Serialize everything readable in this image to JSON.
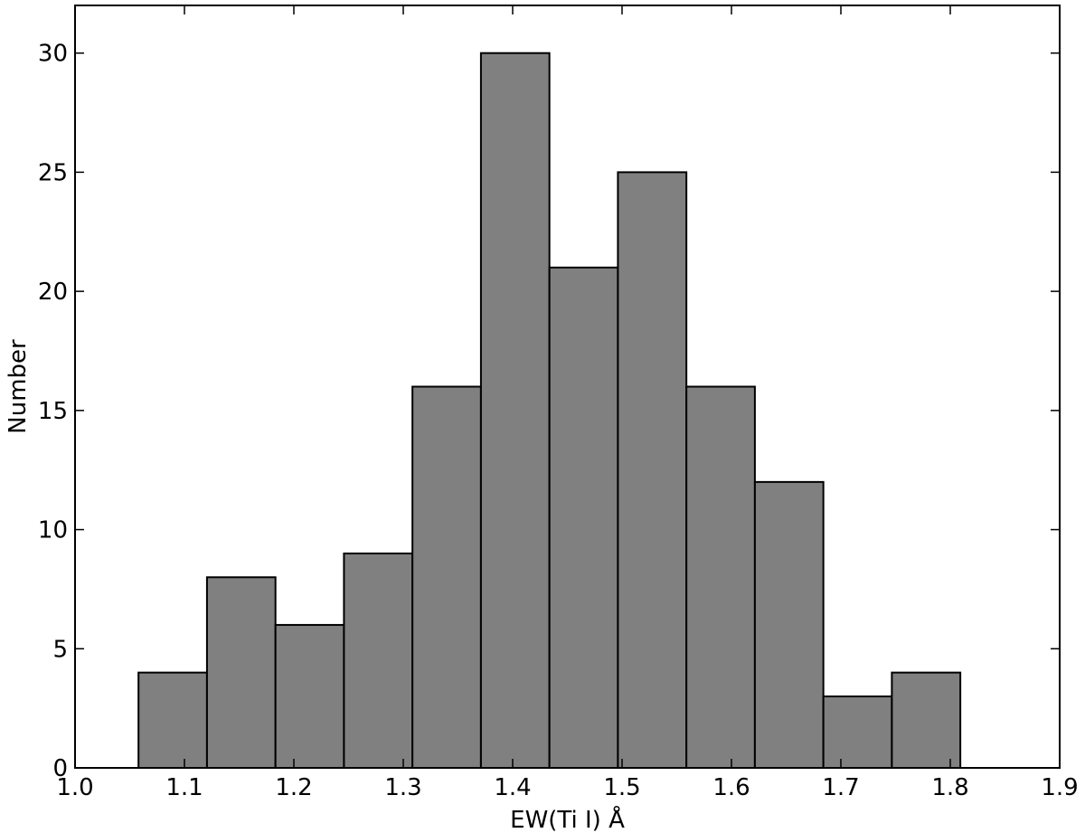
{
  "chart_data": {
    "type": "bar",
    "xlabel": "EW(Ti I) Å",
    "ylabel": "Number",
    "xlim": [
      1.0,
      1.9
    ],
    "ylim": [
      0,
      32
    ],
    "x_ticks": [
      1.0,
      1.1,
      1.2,
      1.3,
      1.4,
      1.5,
      1.6,
      1.7,
      1.8,
      1.9
    ],
    "x_tick_labels": [
      "1.0",
      "1.1",
      "1.2",
      "1.3",
      "1.4",
      "1.5",
      "1.6",
      "1.7",
      "1.8",
      "1.9"
    ],
    "y_ticks": [
      0,
      5,
      10,
      15,
      20,
      25,
      30
    ],
    "y_tick_labels": [
      "0",
      "5",
      "10",
      "15",
      "20",
      "25",
      "30"
    ],
    "bin_edges": [
      1.058,
      1.1206,
      1.1832,
      1.2458,
      1.3084,
      1.371,
      1.4336,
      1.4962,
      1.5588,
      1.6214,
      1.684,
      1.7466,
      1.8092
    ],
    "values": [
      4,
      8,
      6,
      9,
      16,
      30,
      21,
      25,
      16,
      12,
      3,
      4
    ],
    "bar_color": "#808080",
    "edge_color": "#000000",
    "grid": false,
    "legend": "none"
  }
}
